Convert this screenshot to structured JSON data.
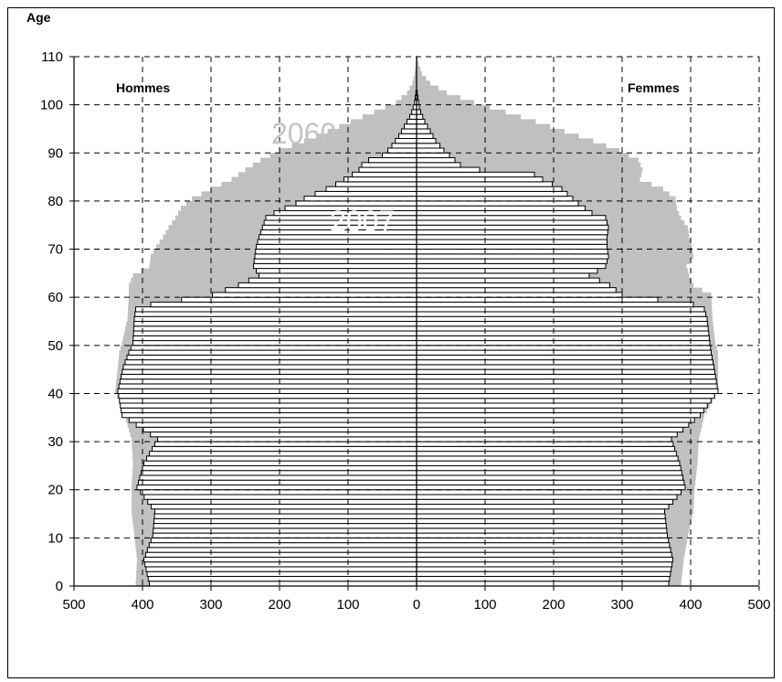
{
  "chart_data": {
    "type": "bar",
    "subtype": "population-pyramid",
    "ylabel": "Age",
    "ylim": [
      0,
      110
    ],
    "xlim": [
      -500,
      500
    ],
    "y_ticks": [
      0,
      10,
      20,
      30,
      40,
      50,
      60,
      70,
      80,
      90,
      100,
      110
    ],
    "x_ticks": [
      -500,
      -400,
      -300,
      -200,
      -100,
      0,
      100,
      200,
      300,
      400,
      500
    ],
    "x_tick_labels": [
      "500",
      "400",
      "300",
      "200",
      "100",
      "0",
      "100",
      "200",
      "300",
      "400",
      "500"
    ],
    "grid": "dashed",
    "left_label": "Hommes",
    "right_label": "Femmes",
    "colors": {
      "projection": "#c0c0c0",
      "current_fill": "#ffffff",
      "current_stroke": "#000000"
    },
    "series": [
      {
        "name": "2060",
        "style": "filled-grey",
        "hommes": [
          [
            0,
            410
          ],
          [
            5,
            408
          ],
          [
            10,
            412
          ],
          [
            15,
            416
          ],
          [
            20,
            416
          ],
          [
            25,
            414
          ],
          [
            30,
            416
          ],
          [
            35,
            426
          ],
          [
            40,
            440
          ],
          [
            45,
            436
          ],
          [
            48,
            434
          ],
          [
            50,
            430
          ],
          [
            55,
            422
          ],
          [
            60,
            420
          ],
          [
            62,
            420
          ],
          [
            64,
            414
          ],
          [
            66,
            390
          ],
          [
            68,
            388
          ],
          [
            70,
            380
          ],
          [
            72,
            370
          ],
          [
            74,
            362
          ],
          [
            76,
            352
          ],
          [
            78,
            344
          ],
          [
            80,
            328
          ],
          [
            82,
            300
          ],
          [
            84,
            270
          ],
          [
            86,
            250
          ],
          [
            88,
            228
          ],
          [
            90,
            200
          ],
          [
            92,
            164
          ],
          [
            94,
            130
          ],
          [
            96,
            96
          ],
          [
            98,
            62
          ],
          [
            100,
            30
          ],
          [
            102,
            14
          ],
          [
            104,
            6
          ],
          [
            106,
            3
          ],
          [
            108,
            1
          ],
          [
            110,
            0
          ]
        ],
        "femmes": [
          [
            0,
            386
          ],
          [
            5,
            390
          ],
          [
            10,
            396
          ],
          [
            15,
            404
          ],
          [
            20,
            406
          ],
          [
            25,
            410
          ],
          [
            30,
            412
          ],
          [
            35,
            420
          ],
          [
            40,
            440
          ],
          [
            45,
            440
          ],
          [
            48,
            440
          ],
          [
            50,
            436
          ],
          [
            55,
            432
          ],
          [
            60,
            430
          ],
          [
            62,
            404
          ],
          [
            64,
            398
          ],
          [
            66,
            394
          ],
          [
            68,
            404
          ],
          [
            70,
            402
          ],
          [
            72,
            398
          ],
          [
            74,
            396
          ],
          [
            76,
            386
          ],
          [
            78,
            380
          ],
          [
            80,
            378
          ],
          [
            82,
            360
          ],
          [
            84,
            326
          ],
          [
            86,
            330
          ],
          [
            88,
            324
          ],
          [
            90,
            296
          ],
          [
            92,
            258
          ],
          [
            94,
            216
          ],
          [
            96,
            174
          ],
          [
            98,
            130
          ],
          [
            100,
            84
          ],
          [
            102,
            44
          ],
          [
            104,
            20
          ],
          [
            106,
            8
          ],
          [
            108,
            3
          ],
          [
            110,
            0
          ]
        ]
      },
      {
        "name": "2007",
        "style": "outlined-white",
        "hommes": [
          [
            0,
            390
          ],
          [
            5,
            398
          ],
          [
            10,
            385
          ],
          [
            15,
            382
          ],
          [
            20,
            408
          ],
          [
            25,
            398
          ],
          [
            30,
            378
          ],
          [
            35,
            430
          ],
          [
            40,
            436
          ],
          [
            45,
            428
          ],
          [
            48,
            420
          ],
          [
            50,
            414
          ],
          [
            55,
            412
          ],
          [
            57,
            410
          ],
          [
            58,
            388
          ],
          [
            60,
            298
          ],
          [
            62,
            260
          ],
          [
            64,
            230
          ],
          [
            66,
            238
          ],
          [
            68,
            236
          ],
          [
            70,
            234
          ],
          [
            72,
            230
          ],
          [
            74,
            225
          ],
          [
            76,
            220
          ],
          [
            77,
            208
          ],
          [
            79,
            176
          ],
          [
            80,
            164
          ],
          [
            81,
            148
          ],
          [
            82,
            132
          ],
          [
            83,
            118
          ],
          [
            84,
            106
          ],
          [
            85,
            94
          ],
          [
            86,
            84
          ],
          [
            87,
            80
          ],
          [
            88,
            70
          ],
          [
            89,
            50
          ],
          [
            90,
            42
          ],
          [
            91,
            36
          ],
          [
            92,
            31
          ],
          [
            93,
            26
          ],
          [
            94,
            22
          ],
          [
            95,
            18
          ],
          [
            96,
            14
          ],
          [
            97,
            10
          ],
          [
            98,
            7
          ],
          [
            99,
            5
          ],
          [
            100,
            3
          ],
          [
            101,
            2
          ],
          [
            102,
            1
          ],
          [
            104,
            0
          ],
          [
            110,
            0
          ]
        ],
        "femmes": [
          [
            0,
            368
          ],
          [
            5,
            374
          ],
          [
            10,
            366
          ],
          [
            15,
            362
          ],
          [
            20,
            392
          ],
          [
            25,
            384
          ],
          [
            30,
            372
          ],
          [
            35,
            414
          ],
          [
            40,
            440
          ],
          [
            45,
            434
          ],
          [
            48,
            430
          ],
          [
            50,
            428
          ],
          [
            55,
            424
          ],
          [
            57,
            420
          ],
          [
            58,
            404
          ],
          [
            60,
            300
          ],
          [
            62,
            282
          ],
          [
            64,
            252
          ],
          [
            66,
            276
          ],
          [
            68,
            280
          ],
          [
            70,
            278
          ],
          [
            72,
            278
          ],
          [
            74,
            280
          ],
          [
            76,
            276
          ],
          [
            77,
            256
          ],
          [
            79,
            236
          ],
          [
            80,
            228
          ],
          [
            81,
            220
          ],
          [
            82,
            212
          ],
          [
            83,
            198
          ],
          [
            84,
            184
          ],
          [
            85,
            172
          ],
          [
            86,
            92
          ],
          [
            87,
            64
          ],
          [
            88,
            56
          ],
          [
            89,
            48
          ],
          [
            90,
            40
          ],
          [
            91,
            34
          ],
          [
            92,
            28
          ],
          [
            93,
            24
          ],
          [
            94,
            20
          ],
          [
            95,
            16
          ],
          [
            96,
            12
          ],
          [
            97,
            9
          ],
          [
            98,
            6
          ],
          [
            99,
            4
          ],
          [
            100,
            3
          ],
          [
            101,
            2
          ],
          [
            102,
            1
          ],
          [
            104,
            0
          ],
          [
            110,
            0
          ]
        ]
      }
    ],
    "annotations": [
      "2060",
      "2007"
    ]
  }
}
